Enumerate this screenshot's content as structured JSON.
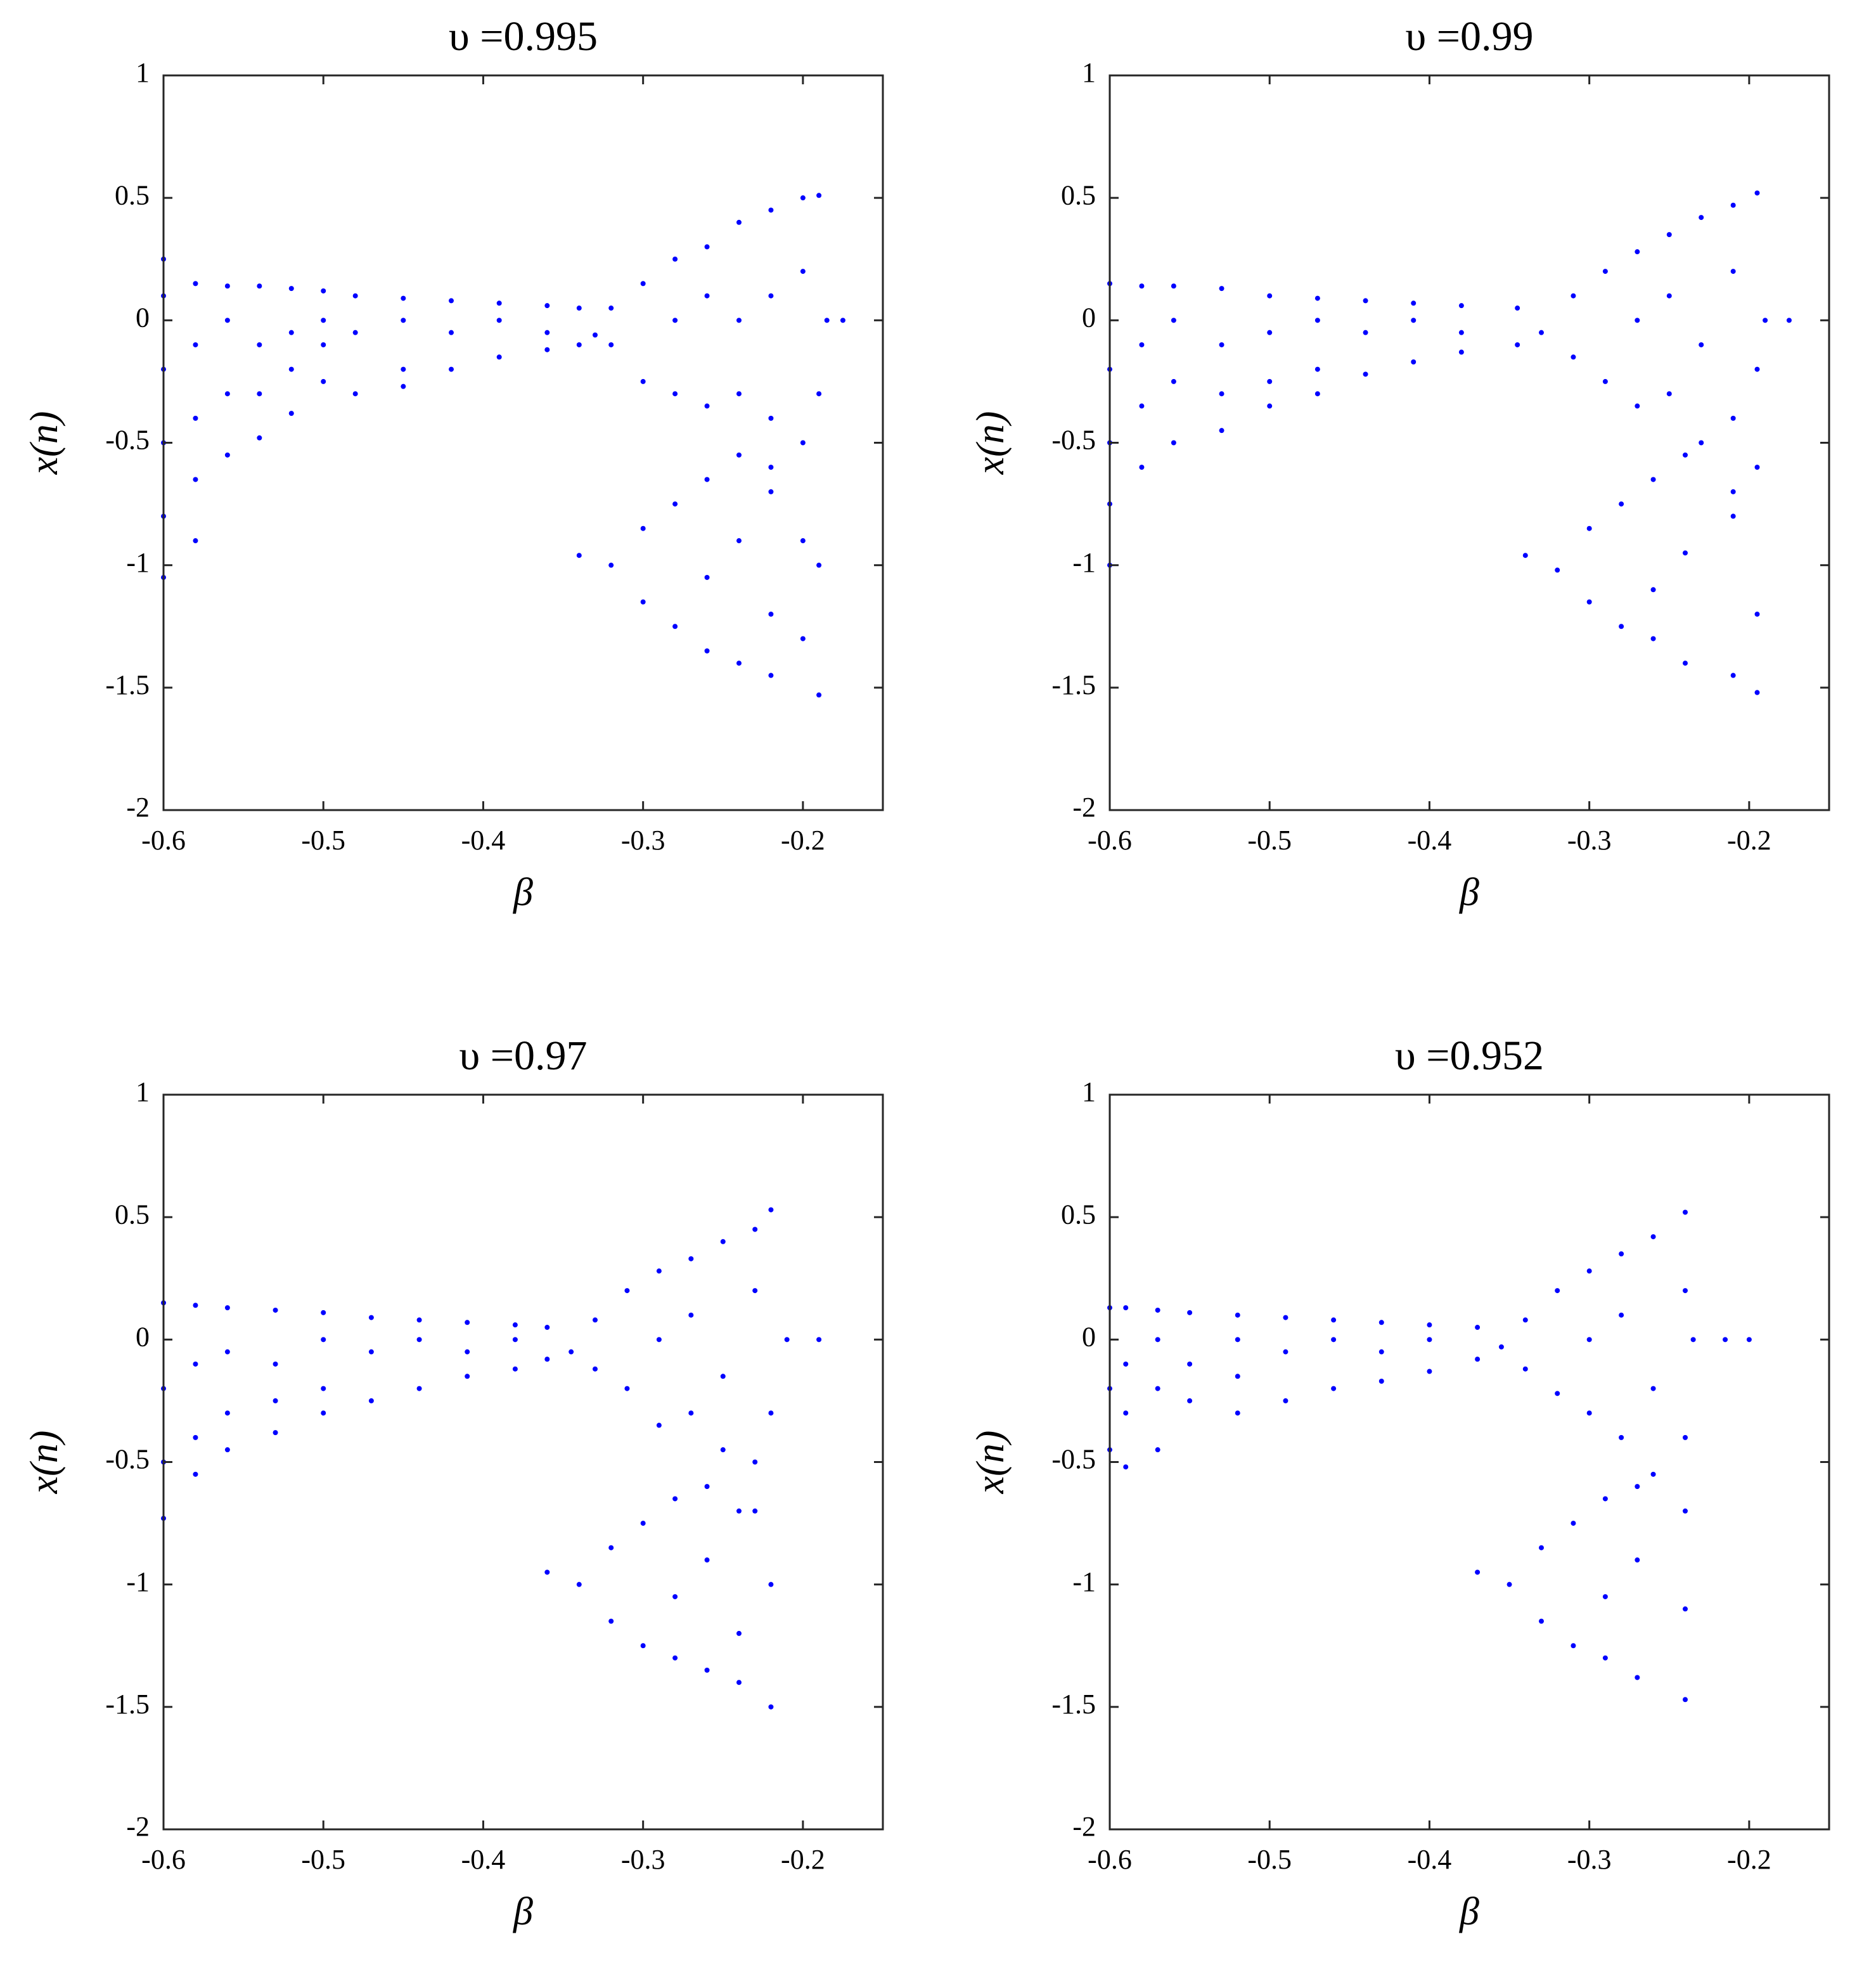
{
  "chart_data": [
    {
      "type": "scatter",
      "title": "υ =0.995",
      "xlabel": "β",
      "ylabel": "x(n)",
      "xlim": [
        -0.6,
        -0.15
      ],
      "ylim": [
        -2,
        1
      ],
      "xticks": [
        -0.6,
        -0.5,
        -0.4,
        -0.3,
        -0.2
      ],
      "yticks": [
        -2,
        -1.5,
        -1,
        -0.5,
        0,
        0.5,
        1
      ],
      "series": [
        {
          "color": "#0000ff",
          "x": [
            -0.6,
            -0.6,
            -0.6,
            -0.6,
            -0.6,
            -0.6,
            -0.58,
            -0.58,
            -0.58,
            -0.58,
            -0.58,
            -0.56,
            -0.56,
            -0.56,
            -0.56,
            -0.54,
            -0.54,
            -0.54,
            -0.54,
            -0.52,
            -0.52,
            -0.52,
            -0.52,
            -0.5,
            -0.5,
            -0.5,
            -0.5,
            -0.48,
            -0.48,
            -0.48,
            -0.45,
            -0.45,
            -0.45,
            -0.45,
            -0.42,
            -0.42,
            -0.42,
            -0.39,
            -0.39,
            -0.39,
            -0.36,
            -0.36,
            -0.36,
            -0.34,
            -0.34,
            -0.33,
            -0.32,
            -0.32,
            -0.3,
            -0.3,
            -0.28,
            -0.28,
            -0.28,
            -0.26,
            -0.26,
            -0.26,
            -0.24,
            -0.24,
            -0.24,
            -0.22,
            -0.22,
            -0.22,
            -0.22,
            -0.2,
            -0.2,
            -0.2,
            -0.2,
            -0.2,
            -0.19,
            -0.19,
            -0.19,
            -0.19,
            -0.34,
            -0.32,
            -0.3,
            -0.3,
            -0.28,
            -0.28,
            -0.26,
            -0.26,
            -0.26,
            -0.24,
            -0.24,
            -0.24,
            -0.22,
            -0.22,
            -0.22,
            -0.185,
            -0.175
          ],
          "values": [
            0.25,
            0.1,
            -0.2,
            -0.5,
            -0.8,
            -1.05,
            0.15,
            -0.1,
            -0.4,
            -0.65,
            -0.9,
            0.14,
            0,
            -0.3,
            -0.55,
            0.14,
            -0.1,
            -0.3,
            -0.48,
            0.13,
            -0.05,
            -0.2,
            -0.38,
            0.12,
            0,
            -0.1,
            -0.25,
            0.1,
            -0.05,
            -0.3,
            0.09,
            0,
            -0.2,
            -0.27,
            0.08,
            -0.05,
            -0.2,
            0.07,
            0,
            -0.15,
            0.06,
            -0.05,
            -0.12,
            0.05,
            -0.1,
            -0.06,
            0.05,
            -0.1,
            0.15,
            -0.25,
            0.25,
            0,
            -0.3,
            0.3,
            0.1,
            -0.35,
            0.4,
            0,
            -0.3,
            0.45,
            0.1,
            -0.4,
            -0.7,
            0.5,
            0.2,
            -0.5,
            -0.9,
            -1.3,
            0.51,
            -0.3,
            -1.0,
            -1.53,
            -0.96,
            -1.0,
            -0.85,
            -1.15,
            -0.75,
            -1.25,
            -0.65,
            -1.05,
            -1.35,
            -0.55,
            -0.9,
            -1.4,
            -0.6,
            -1.2,
            -1.45,
            0,
            0
          ]
        }
      ]
    },
    {
      "type": "scatter",
      "title": "υ =0.99",
      "xlabel": "β",
      "ylabel": "x(n)",
      "xlim": [
        -0.6,
        -0.15
      ],
      "ylim": [
        -2,
        1
      ],
      "xticks": [
        -0.6,
        -0.5,
        -0.4,
        -0.3,
        -0.2
      ],
      "yticks": [
        -2,
        -1.5,
        -1,
        -0.5,
        0,
        0.5,
        1
      ],
      "series": [
        {
          "color": "#0000ff",
          "x": [
            -0.6,
            -0.6,
            -0.6,
            -0.6,
            -0.6,
            -0.58,
            -0.58,
            -0.58,
            -0.58,
            -0.56,
            -0.56,
            -0.56,
            -0.56,
            -0.53,
            -0.53,
            -0.53,
            -0.53,
            -0.5,
            -0.5,
            -0.5,
            -0.5,
            -0.47,
            -0.47,
            -0.47,
            -0.47,
            -0.44,
            -0.44,
            -0.44,
            -0.41,
            -0.41,
            -0.41,
            -0.38,
            -0.38,
            -0.38,
            -0.345,
            -0.345,
            -0.33,
            -0.31,
            -0.31,
            -0.29,
            -0.29,
            -0.27,
            -0.27,
            -0.27,
            -0.25,
            -0.25,
            -0.25,
            -0.23,
            -0.23,
            -0.23,
            -0.21,
            -0.21,
            -0.21,
            -0.21,
            -0.195,
            -0.195,
            -0.195,
            -0.195,
            -0.195,
            -0.34,
            -0.32,
            -0.3,
            -0.3,
            -0.28,
            -0.28,
            -0.26,
            -0.26,
            -0.26,
            -0.24,
            -0.24,
            -0.24,
            -0.21,
            -0.21,
            -0.19,
            -0.175
          ],
          "values": [
            0.15,
            -0.2,
            -0.5,
            -0.75,
            -1.0,
            0.14,
            -0.1,
            -0.35,
            -0.6,
            0.14,
            0,
            -0.25,
            -0.5,
            0.13,
            -0.1,
            -0.3,
            -0.45,
            0.1,
            -0.05,
            -0.25,
            -0.35,
            0.09,
            0,
            -0.2,
            -0.3,
            0.08,
            -0.05,
            -0.22,
            0.07,
            0,
            -0.17,
            0.06,
            -0.05,
            -0.13,
            0.05,
            -0.1,
            -0.05,
            0.1,
            -0.15,
            0.2,
            -0.25,
            0.28,
            0,
            -0.35,
            0.35,
            0.1,
            -0.3,
            0.42,
            -0.1,
            -0.5,
            0.47,
            0.2,
            -0.4,
            -0.8,
            0.52,
            -0.2,
            -0.6,
            -1.2,
            -1.52,
            -0.96,
            -1.02,
            -0.85,
            -1.15,
            -0.75,
            -1.25,
            -0.65,
            -1.1,
            -1.3,
            -0.55,
            -0.95,
            -1.4,
            -0.7,
            -1.45,
            0,
            0
          ]
        }
      ]
    },
    {
      "type": "scatter",
      "title": "υ =0.97",
      "xlabel": "β",
      "ylabel": "x(n)",
      "xlim": [
        -0.6,
        -0.15
      ],
      "ylim": [
        -2,
        1
      ],
      "xticks": [
        -0.6,
        -0.5,
        -0.4,
        -0.3,
        -0.2
      ],
      "yticks": [
        -2,
        -1.5,
        -1,
        -0.5,
        0,
        0.5,
        1
      ],
      "series": [
        {
          "color": "#0000ff",
          "x": [
            -0.6,
            -0.6,
            -0.6,
            -0.6,
            -0.58,
            -0.58,
            -0.58,
            -0.58,
            -0.56,
            -0.56,
            -0.56,
            -0.56,
            -0.53,
            -0.53,
            -0.53,
            -0.53,
            -0.5,
            -0.5,
            -0.5,
            -0.5,
            -0.47,
            -0.47,
            -0.47,
            -0.44,
            -0.44,
            -0.44,
            -0.41,
            -0.41,
            -0.41,
            -0.38,
            -0.38,
            -0.38,
            -0.36,
            -0.36,
            -0.345,
            -0.33,
            -0.33,
            -0.31,
            -0.31,
            -0.29,
            -0.29,
            -0.29,
            -0.27,
            -0.27,
            -0.27,
            -0.25,
            -0.25,
            -0.25,
            -0.23,
            -0.23,
            -0.23,
            -0.23,
            -0.22,
            -0.22,
            -0.22,
            -0.22,
            -0.36,
            -0.34,
            -0.32,
            -0.32,
            -0.3,
            -0.3,
            -0.28,
            -0.28,
            -0.28,
            -0.26,
            -0.26,
            -0.26,
            -0.24,
            -0.24,
            -0.24,
            -0.21,
            -0.19
          ],
          "values": [
            0.15,
            -0.2,
            -0.5,
            -0.73,
            0.14,
            -0.1,
            -0.4,
            -0.55,
            0.13,
            -0.05,
            -0.3,
            -0.45,
            0.12,
            -0.1,
            -0.25,
            -0.38,
            0.11,
            0,
            -0.2,
            -0.3,
            0.09,
            -0.05,
            -0.25,
            0.08,
            0,
            -0.2,
            0.07,
            -0.05,
            -0.15,
            0.06,
            0,
            -0.12,
            0.05,
            -0.08,
            -0.05,
            0.08,
            -0.12,
            0.2,
            -0.2,
            0.28,
            0,
            -0.35,
            0.33,
            0.1,
            -0.3,
            0.4,
            -0.15,
            -0.45,
            0.45,
            0.2,
            -0.5,
            -0.7,
            0.53,
            -0.3,
            -1.0,
            -1.5,
            -0.95,
            -1.0,
            -0.85,
            -1.15,
            -0.75,
            -1.25,
            -0.65,
            -1.05,
            -1.3,
            -0.6,
            -0.9,
            -1.35,
            -0.7,
            -1.2,
            -1.4,
            0,
            0
          ]
        }
      ]
    },
    {
      "type": "scatter",
      "title": "υ =0.952",
      "xlabel": "β",
      "ylabel": "x(n)",
      "xlim": [
        -0.6,
        -0.15
      ],
      "ylim": [
        -2,
        1
      ],
      "xticks": [
        -0.6,
        -0.5,
        -0.4,
        -0.3,
        -0.2
      ],
      "yticks": [
        -2,
        -1.5,
        -1,
        -0.5,
        0,
        0.5,
        1
      ],
      "series": [
        {
          "color": "#0000ff",
          "x": [
            -0.6,
            -0.6,
            -0.6,
            -0.59,
            -0.59,
            -0.59,
            -0.59,
            -0.57,
            -0.57,
            -0.57,
            -0.57,
            -0.55,
            -0.55,
            -0.55,
            -0.52,
            -0.52,
            -0.52,
            -0.52,
            -0.49,
            -0.49,
            -0.49,
            -0.46,
            -0.46,
            -0.46,
            -0.43,
            -0.43,
            -0.43,
            -0.4,
            -0.4,
            -0.4,
            -0.37,
            -0.37,
            -0.355,
            -0.34,
            -0.34,
            -0.32,
            -0.32,
            -0.3,
            -0.3,
            -0.3,
            -0.28,
            -0.28,
            -0.28,
            -0.26,
            -0.26,
            -0.26,
            -0.24,
            -0.24,
            -0.24,
            -0.24,
            -0.24,
            -0.24,
            -0.37,
            -0.35,
            -0.33,
            -0.33,
            -0.31,
            -0.31,
            -0.29,
            -0.29,
            -0.29,
            -0.27,
            -0.27,
            -0.27,
            -0.235,
            -0.215,
            -0.2
          ],
          "values": [
            0.13,
            -0.2,
            -0.45,
            0.13,
            -0.1,
            -0.3,
            -0.52,
            0.12,
            0,
            -0.2,
            -0.45,
            0.11,
            -0.1,
            -0.25,
            0.1,
            0,
            -0.15,
            -0.3,
            0.09,
            -0.05,
            -0.25,
            0.08,
            0,
            -0.2,
            0.07,
            -0.05,
            -0.17,
            0.06,
            0,
            -0.13,
            0.05,
            -0.08,
            -0.03,
            0.08,
            -0.12,
            0.2,
            -0.22,
            0.28,
            0,
            -0.3,
            0.35,
            0.1,
            -0.4,
            0.42,
            -0.2,
            -0.55,
            0.52,
            0.2,
            -0.4,
            -0.7,
            -1.1,
            -1.47,
            -0.95,
            -1.0,
            -0.85,
            -1.15,
            -0.75,
            -1.25,
            -0.65,
            -1.05,
            -1.3,
            -0.6,
            -0.9,
            -1.38,
            0,
            0,
            0
          ]
        }
      ]
    }
  ]
}
